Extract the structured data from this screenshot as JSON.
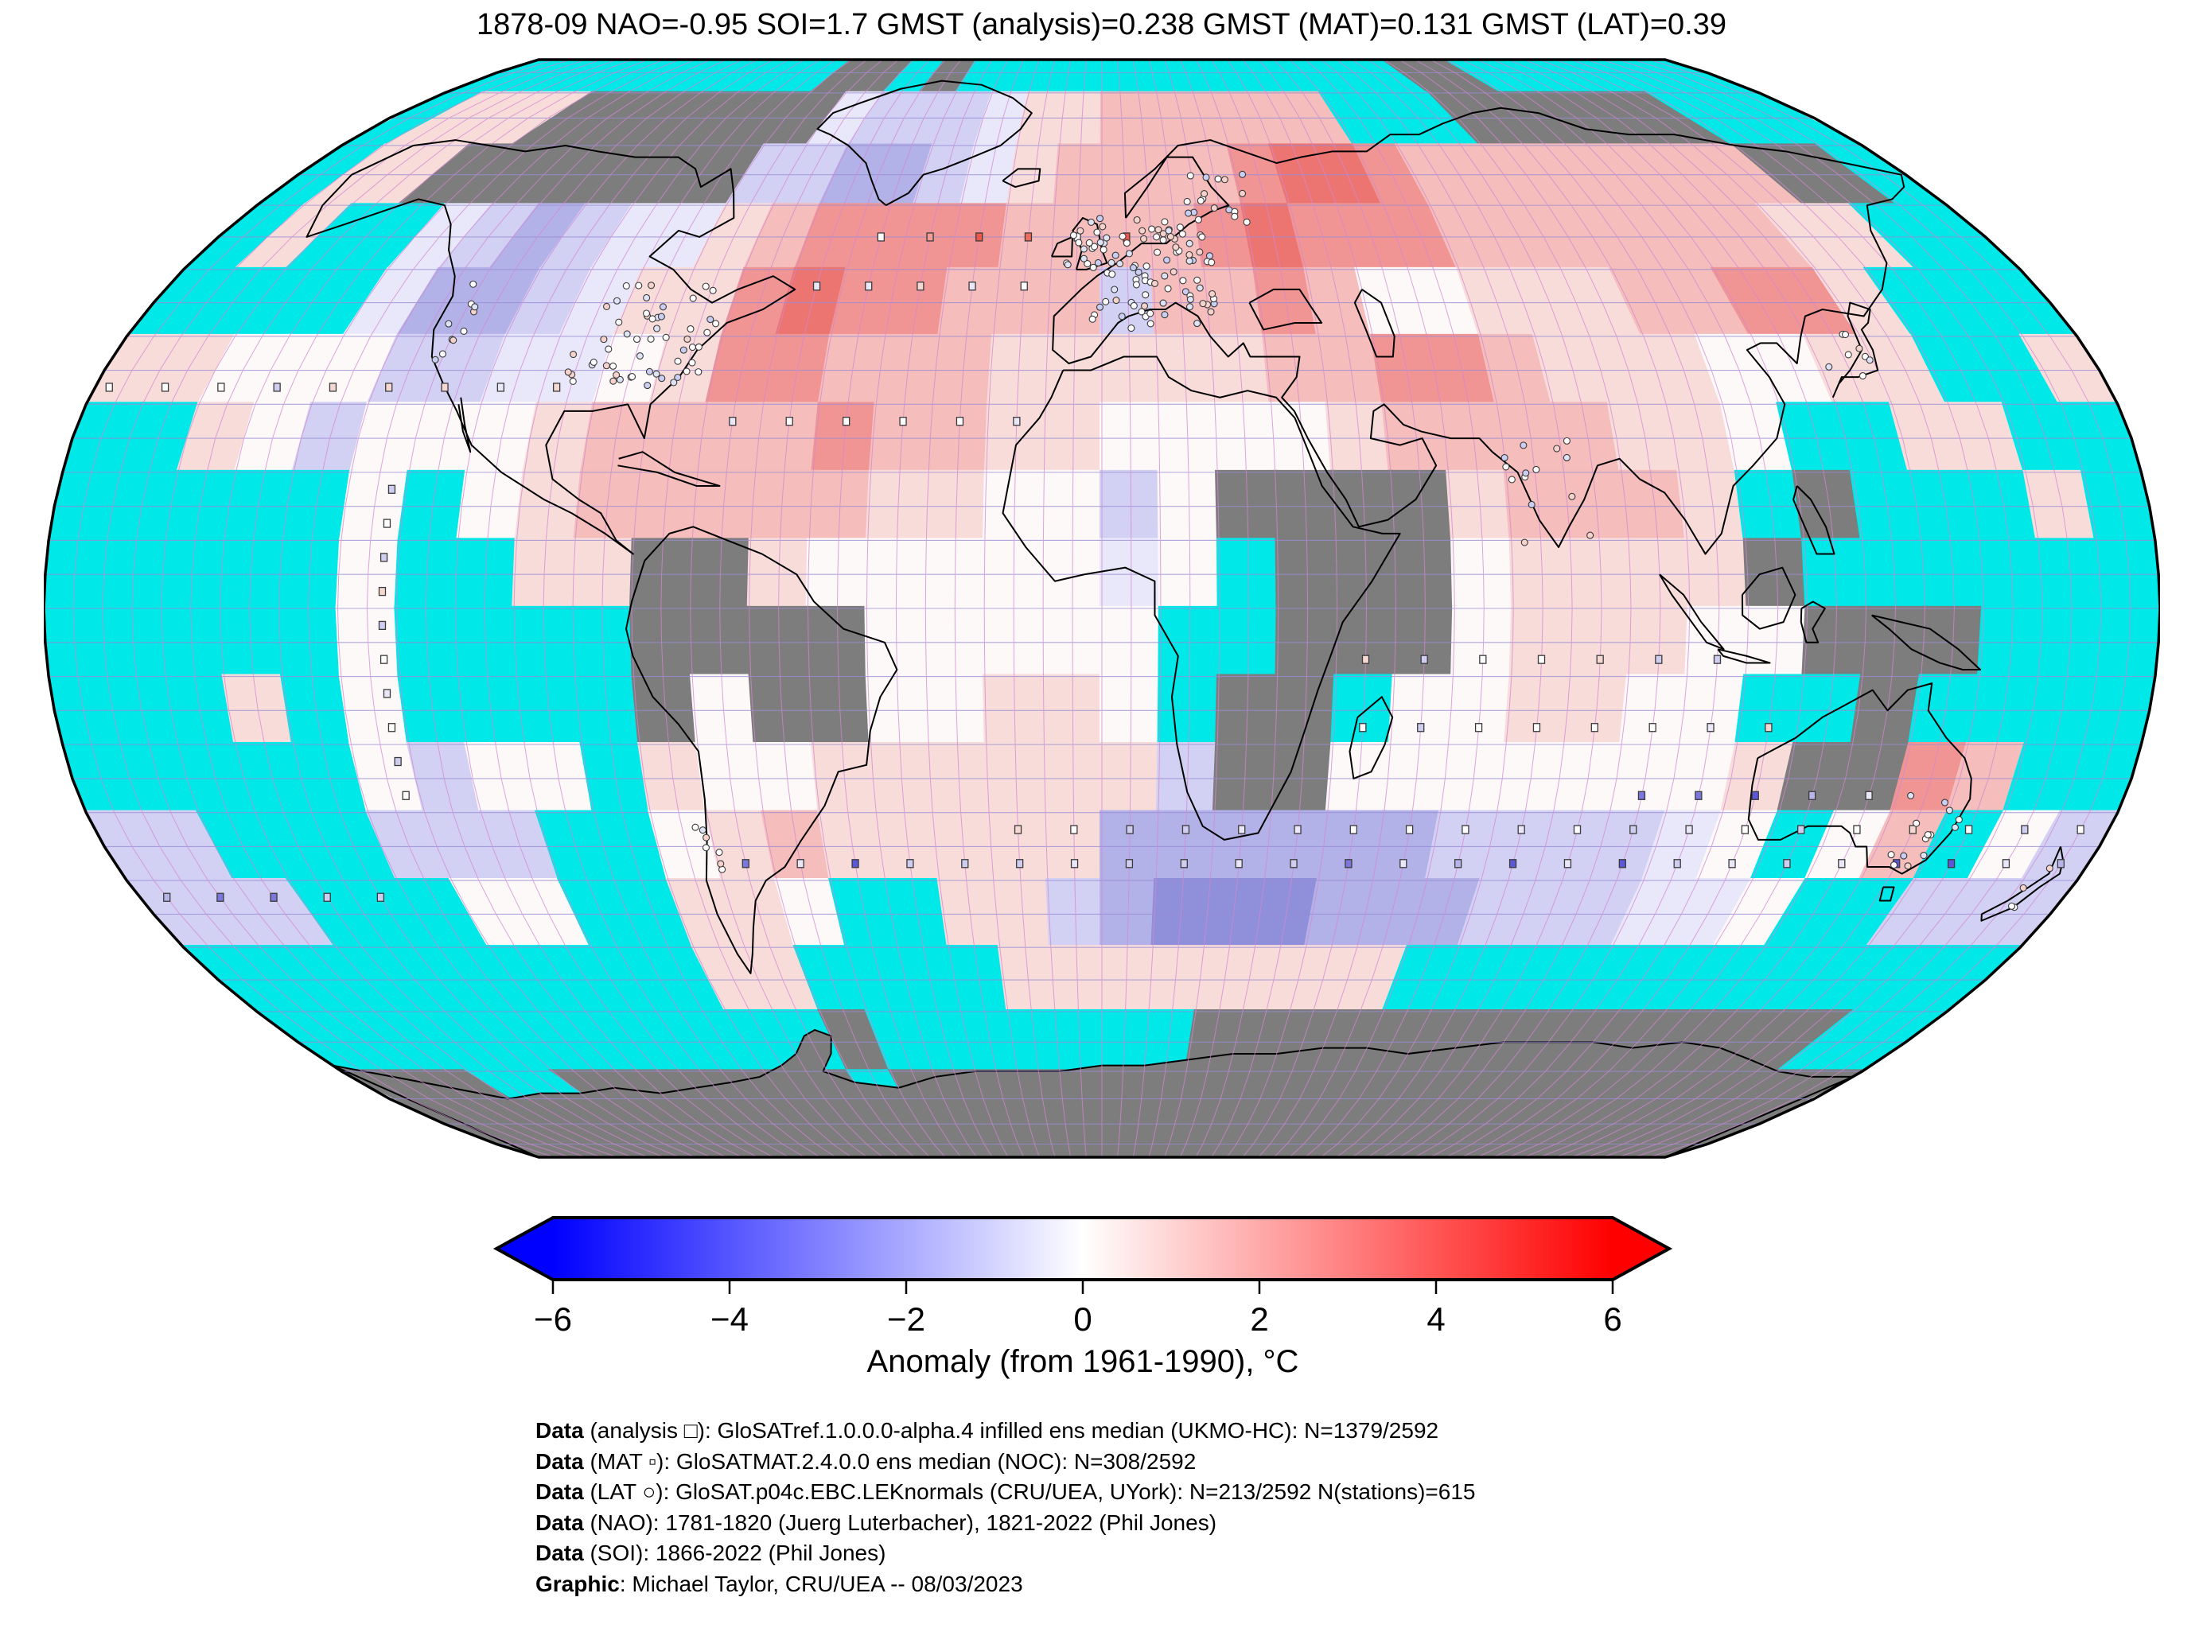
{
  "title": "1878-09 NAO=-0.95 SOI=1.7 GMST (analysis)=0.238 GMST (MAT)=0.131 GMST (LAT)=0.39",
  "stats": {
    "date": "1878-09",
    "NAO": -0.95,
    "SOI": 1.7,
    "GMST_analysis": 0.238,
    "GMST_MAT": 0.131,
    "GMST_LAT": 0.39
  },
  "chart_data": {
    "type": "heatmap",
    "title": "1878-09 NAO=-0.95 SOI=1.7 GMST (analysis)=0.238 GMST (MAT)=0.131 GMST (LAT)=0.39",
    "projection": "robinson",
    "cell_size_deg": 10,
    "lat_start": 90,
    "lon_start": -180,
    "palette": {
      "C": "#00e8e8",
      "G": "#7d7d7d",
      "o": "#fcf9f8",
      "a": "#f8dcda",
      "b": "#f5bdbb",
      "c": "#f09593",
      "d": "#ec7572",
      "w": "#e9e8fa",
      "x": "#d2d1f3",
      "y": "#b3b2e8",
      "z": "#908fd9"
    },
    "palette_meaning": {
      "C": "no-data ocean (cyan)",
      "G": "no-data land (grey)",
      "o": "anomaly near 0",
      "a": "weak warm",
      "b": "moderate warm",
      "c": "strong warm",
      "d": "strongest warm",
      "w": "weak cool",
      "x": "moderate cool",
      "y": "strong cool",
      "z": "strongest cool"
    },
    "grid_rows": [
      "CCCCCCCCCCGGCGCCCCCCCCCCCCCGGCCCCCCC",
      "CaaaGGGGGGGwxxxwaabbbbbbCCCGGGGGGCCC",
      "CaaGGGGGGGxxyyxwabbbbcddcbbbbbbbbGGC",
      "CaCCwxyxwwabccccbbbbcdcccbbbbbbbaaCC",
      "CCCCwyyxwaacdccbbbxbbcbooaaabbccaCCC",
      "aaoooxxwwoaccbbbaaaaabbccbaaaooaaCCa",
      "CCaoxoooabbbbcbbaaooooabbbbaaoCCaaCC",
      "CCCCCoCoabbbbbaaooxoGGGGabbbaCGCCCaC",
      "CCCCCoCCaaGGaooooowoCGGGoaaaaGCCCCCC",
      "CCCCCoCCCCGGGGoooooCCGGGoaaaooGGGCCC",
      "CCCaCoCCCCGoGGooaaoCGGCooaaooCCGCCCC",
      "CCCCCoxooCaooaaaaaaxGGoooooooaGGcbCC",
      "xxCCCxxxCCoabaaaaayyyyyyxxxxwoCobCox",
      "xxxCCCooCCaaoCCaaxyzzzyyyxxxwwoCCxxx",
      "CCCCCCCCCCaaCCCCaaaaaaaaCCCCCCCCCCCC",
      "CCCCCCCCCCCCGCCCCCCCGGGGGGGGGGGGGGCC",
      "GGGCCGGGGGGGCGGGGGGGGGGGGGGGGGGGGGGG",
      "GGGGGGGGGGGGGGGGGGGGGGGGGGGGGGGGGGGG"
    ],
    "colorbar": {
      "min": -6,
      "max": 6,
      "ticks": [
        -6,
        -4,
        -2,
        0,
        2,
        4,
        6
      ],
      "tick_labels": [
        "−6",
        "−4",
        "−2",
        "0",
        "2",
        "4",
        "6"
      ],
      "label": "Anomaly (from 1961-1990), °C",
      "left_color": "#0000ff",
      "mid_color": "#ffffff",
      "right_color": "#ff0000"
    },
    "markers": {
      "square_rows": [
        {
          "lat": 32.5,
          "lon0": -177.5,
          "lon1": -97.5,
          "step": 10,
          "style": "pale"
        },
        {
          "lat": 55.0,
          "lon0": -45.0,
          "lon1": 5.0,
          "step": 10,
          "style": "red"
        },
        {
          "lat": 47.5,
          "lon0": -55.0,
          "lon1": -15.0,
          "step": 10,
          "style": "pale"
        },
        {
          "lat": 27.5,
          "lon0": -65.0,
          "lon1": -15.0,
          "step": 10,
          "style": "pale"
        },
        {
          "lat": -7.5,
          "lon0": 45.0,
          "lon1": 105.0,
          "step": 10,
          "style": "pale"
        },
        {
          "lat": -17.5,
          "lon0": 45.0,
          "lon1": 115.0,
          "step": 10,
          "style": "pale"
        },
        {
          "lat": -27.5,
          "lon0": 95.0,
          "lon1": 135.0,
          "step": 10,
          "style": "blue"
        },
        {
          "lat": -32.5,
          "lon0": -15.0,
          "lon1": 175.0,
          "step": 10,
          "style": "pale"
        },
        {
          "lat": -37.5,
          "lon0": -65.0,
          "lon1": 175.0,
          "step": 10,
          "style": "blue"
        },
        {
          "lat": -42.5,
          "lon0": -175.0,
          "lon1": -135.0,
          "step": 10,
          "style": "blue"
        }
      ],
      "square_columns": [
        {
          "lon": -122.5,
          "lat0": 17.5,
          "lat1": -27.5,
          "step": 5,
          "style": "pale"
        }
      ],
      "station_clusters": [
        {
          "lon": 10,
          "lat": 50,
          "dlon": 12,
          "dlat": 9,
          "n": 90
        },
        {
          "lon": -3,
          "lat": 54,
          "dlon": 4,
          "dlat": 4,
          "n": 14
        },
        {
          "lon": 25,
          "lat": 62,
          "dlon": 8,
          "dlat": 5,
          "n": 18
        },
        {
          "lon": -84,
          "lat": 40,
          "dlon": 13,
          "dlat": 8,
          "n": 55
        },
        {
          "lon": -120,
          "lat": 41,
          "dlon": 3,
          "dlat": 7,
          "n": 10
        },
        {
          "lon": 77,
          "lat": 17,
          "dlon": 7,
          "dlat": 9,
          "n": 14
        },
        {
          "lon": 136,
          "lat": 37,
          "dlon": 5,
          "dlat": 4,
          "n": 8
        },
        {
          "lon": 147,
          "lat": -32,
          "dlon": 6,
          "dlat": 6,
          "n": 14
        },
        {
          "lon": 172,
          "lat": -41,
          "dlon": 3,
          "dlat": 3,
          "n": 4
        },
        {
          "lon": -71,
          "lat": -34,
          "dlon": 2,
          "dlat": 7,
          "n": 7
        }
      ]
    }
  },
  "styles": {
    "ocean_missing": "#00e8e8",
    "land_missing": "#7d7d7d",
    "coast": "#000000",
    "border": "#000000",
    "graticule_meridian": "#d287d2",
    "graticule_parallel": "#988bd4",
    "marker_stroke": "#3a3a3a"
  },
  "footer": {
    "lines": [
      {
        "bold": "Data",
        "rest": " (analysis □): GloSATref.1.0.0.0-alpha.4 infilled ens median (UKMO-HC): N=1379/2592"
      },
      {
        "bold": "Data",
        "rest": " (MAT ▫): GloSATMAT.2.4.0.0 ens median (NOC): N=308/2592"
      },
      {
        "bold": "Data",
        "rest": " (LAT ○): GloSAT.p04c.EBC.LEKnormals (CRU/UEA, UYork): N=213/2592 N(stations)=615"
      },
      {
        "bold": "Data",
        "rest": " (NAO): 1781-1820 (Juerg Luterbacher), 1821-2022 (Phil Jones)"
      },
      {
        "bold": "Data",
        "rest": " (SOI): 1866-2022 (Phil Jones)"
      },
      {
        "bold": "Graphic",
        "rest": ": Michael Taylor, CRU/UEA -- 08/03/2023"
      }
    ]
  }
}
